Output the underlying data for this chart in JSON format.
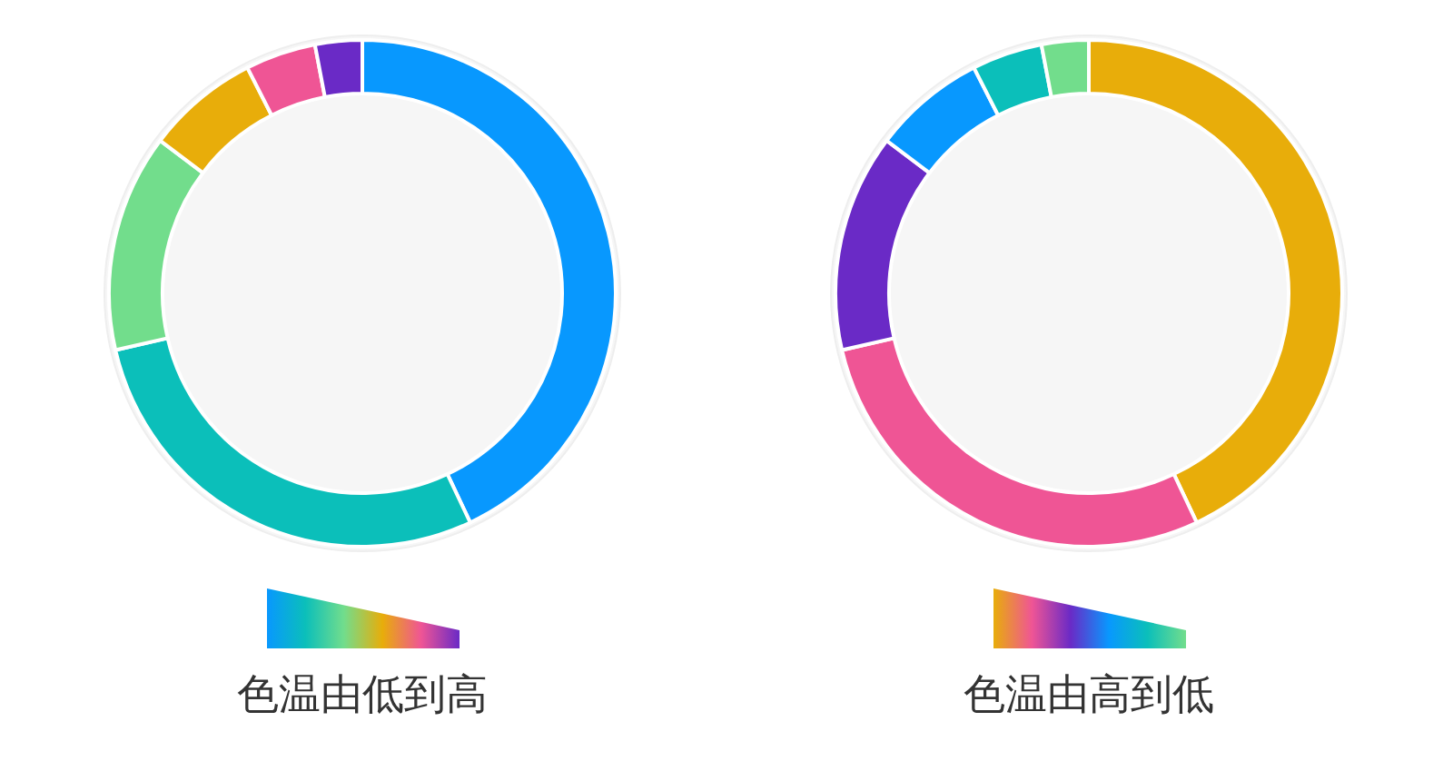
{
  "chart_data": [
    {
      "type": "donut",
      "title": "色温由低到高",
      "categories": [
        null,
        null,
        null,
        null,
        null,
        null
      ],
      "values": [
        43,
        28.4,
        13.9,
        7.2,
        4.5,
        3
      ],
      "colors": [
        "#0898fe",
        "#0bbfba",
        "#72dd8c",
        "#e8ad0a",
        "#ef5595",
        "#6a2ac6"
      ]
    },
    {
      "type": "donut",
      "title": "色温由高到低",
      "categories": [
        null,
        null,
        null,
        null,
        null,
        null
      ],
      "values": [
        43,
        28.4,
        13.9,
        7.2,
        4.5,
        3
      ],
      "colors": [
        "#e8ad0a",
        "#ef5595",
        "#6a2ac6",
        "#0898fe",
        "#0bbfba",
        "#72dd8c"
      ]
    }
  ]
}
